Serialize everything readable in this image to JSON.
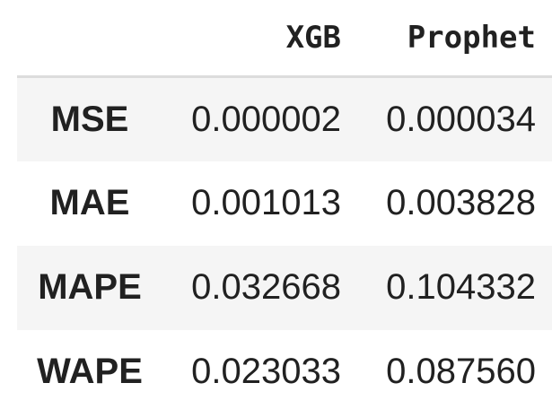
{
  "table": {
    "columns": [
      "XGB",
      "Prophet"
    ],
    "rows": [
      {
        "label": "MSE",
        "values": [
          "0.000002",
          "0.000034"
        ]
      },
      {
        "label": "MAE",
        "values": [
          "0.001013",
          "0.003828"
        ]
      },
      {
        "label": "MAPE",
        "values": [
          "0.032668",
          "0.104332"
        ]
      },
      {
        "label": "WAPE",
        "values": [
          "0.023033",
          "0.087560"
        ]
      }
    ]
  },
  "colors": {
    "text": "#212121",
    "row_stripe": "#f5f5f5",
    "header_rule": "#dcdcdc",
    "background": "#ffffff"
  }
}
